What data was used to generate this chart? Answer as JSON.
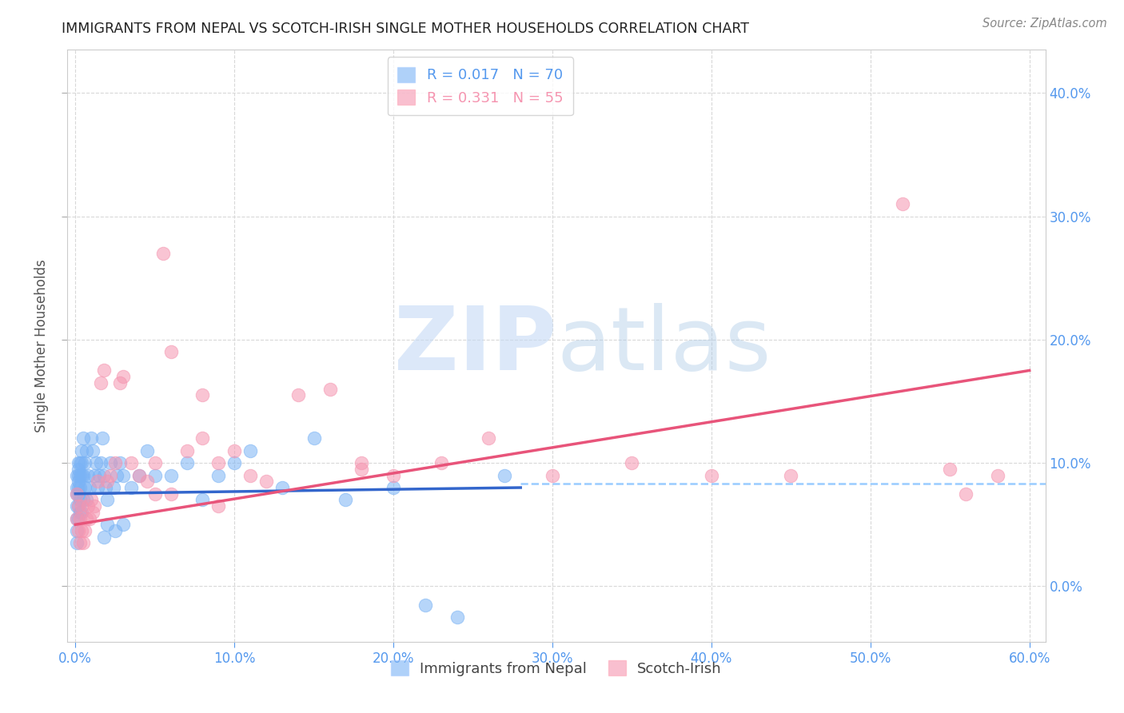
{
  "title": "IMMIGRANTS FROM NEPAL VS SCOTCH-IRISH SINGLE MOTHER HOUSEHOLDS CORRELATION CHART",
  "source": "Source: ZipAtlas.com",
  "ylabel": "Single Mother Households",
  "xlim": [
    -0.005,
    0.61
  ],
  "ylim": [
    -0.045,
    0.435
  ],
  "yticks": [
    0.0,
    0.1,
    0.2,
    0.3,
    0.4
  ],
  "xticks": [
    0.0,
    0.1,
    0.2,
    0.3,
    0.4,
    0.5,
    0.6
  ],
  "nepal_color": "#7ab3f5",
  "scotch_color": "#f595b0",
  "nepal_R": 0.017,
  "nepal_N": 70,
  "scotch_R": 0.331,
  "scotch_N": 55,
  "nepal_line_color": "#3366cc",
  "scotch_line_color": "#e8547a",
  "dash_line_color": "#99ccff",
  "nepal_x": [
    0.001,
    0.001,
    0.001,
    0.001,
    0.001,
    0.001,
    0.001,
    0.002,
    0.002,
    0.002,
    0.002,
    0.002,
    0.002,
    0.002,
    0.002,
    0.003,
    0.003,
    0.003,
    0.003,
    0.003,
    0.004,
    0.004,
    0.004,
    0.004,
    0.005,
    0.005,
    0.005,
    0.006,
    0.006,
    0.007,
    0.007,
    0.008,
    0.009,
    0.01,
    0.011,
    0.012,
    0.013,
    0.014,
    0.015,
    0.016,
    0.017,
    0.018,
    0.019,
    0.02,
    0.022,
    0.024,
    0.026,
    0.028,
    0.03,
    0.035,
    0.04,
    0.045,
    0.05,
    0.06,
    0.07,
    0.08,
    0.09,
    0.1,
    0.11,
    0.13,
    0.15,
    0.17,
    0.2,
    0.22,
    0.24,
    0.27,
    0.02,
    0.025,
    0.03,
    0.018
  ],
  "nepal_y": [
    0.075,
    0.065,
    0.055,
    0.045,
    0.035,
    0.09,
    0.08,
    0.095,
    0.085,
    0.075,
    0.065,
    0.055,
    0.1,
    0.09,
    0.08,
    0.1,
    0.09,
    0.08,
    0.07,
    0.06,
    0.11,
    0.1,
    0.09,
    0.06,
    0.12,
    0.09,
    0.07,
    0.1,
    0.08,
    0.11,
    0.07,
    0.09,
    0.08,
    0.12,
    0.11,
    0.09,
    0.1,
    0.08,
    0.09,
    0.1,
    0.12,
    0.09,
    0.08,
    0.07,
    0.1,
    0.08,
    0.09,
    0.1,
    0.09,
    0.08,
    0.09,
    0.11,
    0.09,
    0.09,
    0.1,
    0.07,
    0.09,
    0.1,
    0.11,
    0.08,
    0.12,
    0.07,
    0.08,
    -0.015,
    -0.025,
    0.09,
    0.05,
    0.045,
    0.05,
    0.04
  ],
  "scotch_x": [
    0.001,
    0.001,
    0.002,
    0.002,
    0.003,
    0.003,
    0.004,
    0.004,
    0.005,
    0.006,
    0.007,
    0.008,
    0.009,
    0.01,
    0.011,
    0.012,
    0.014,
    0.016,
    0.018,
    0.02,
    0.022,
    0.025,
    0.028,
    0.03,
    0.035,
    0.04,
    0.045,
    0.05,
    0.055,
    0.06,
    0.07,
    0.08,
    0.09,
    0.1,
    0.11,
    0.12,
    0.14,
    0.16,
    0.18,
    0.2,
    0.23,
    0.26,
    0.3,
    0.35,
    0.4,
    0.45,
    0.52,
    0.55,
    0.56,
    0.58,
    0.05,
    0.06,
    0.18,
    0.08,
    0.09
  ],
  "scotch_y": [
    0.075,
    0.055,
    0.065,
    0.045,
    0.055,
    0.035,
    0.065,
    0.045,
    0.035,
    0.045,
    0.055,
    0.065,
    0.055,
    0.07,
    0.06,
    0.065,
    0.085,
    0.165,
    0.175,
    0.085,
    0.09,
    0.1,
    0.165,
    0.17,
    0.1,
    0.09,
    0.085,
    0.1,
    0.27,
    0.19,
    0.11,
    0.12,
    0.1,
    0.11,
    0.09,
    0.085,
    0.155,
    0.16,
    0.1,
    0.09,
    0.1,
    0.12,
    0.09,
    0.1,
    0.09,
    0.09,
    0.31,
    0.095,
    0.075,
    0.09,
    0.075,
    0.075,
    0.095,
    0.155,
    0.065
  ],
  "nepal_line_x0": 0.0,
  "nepal_line_x1": 0.28,
  "nepal_line_y0": 0.075,
  "nepal_line_y1": 0.08,
  "scotch_line_x0": 0.0,
  "scotch_line_x1": 0.6,
  "scotch_line_y0": 0.05,
  "scotch_line_y1": 0.175,
  "dash_line_y": 0.083,
  "dash_line_x0": 0.28,
  "dash_line_x1": 0.61,
  "watermark_zip": "ZIP",
  "watermark_atlas": "atlas",
  "background_color": "#ffffff",
  "grid_color": "#d8d8d8",
  "tick_color": "#5599ee",
  "legend_items": [
    "Immigrants from Nepal",
    "Scotch-Irish"
  ]
}
